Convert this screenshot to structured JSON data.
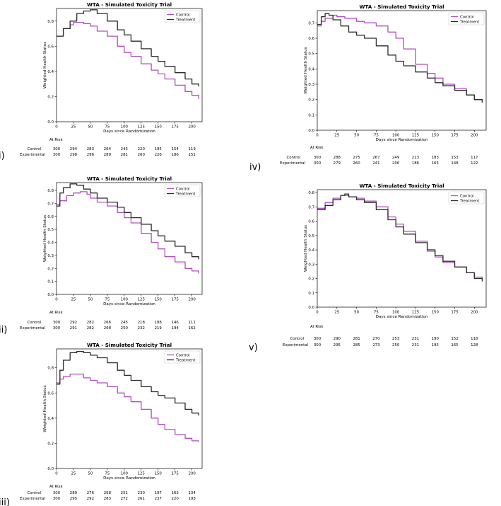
{
  "colors": {
    "control": "#b04fc0",
    "treatment": "#2b2b2b",
    "axis": "#000000"
  },
  "risk_table": {
    "at_risk_label": "At Risk",
    "control_label": "Control",
    "experimental_label": "Experimental"
  },
  "chart_data": [
    {
      "id": "i",
      "panel_label": "i)",
      "type": "line",
      "title": "WTA - Simulated Toxicity Trial",
      "xlabel": "Days since Randomization",
      "ylabel": "Weighted Health Status",
      "xlim": [
        0,
        215
      ],
      "ylim": [
        0,
        0.9
      ],
      "xticks": [
        0,
        25,
        50,
        75,
        100,
        125,
        150,
        175,
        200
      ],
      "yticks": [
        0.0,
        0.2,
        0.4,
        0.6,
        0.8
      ],
      "legend": "top-right",
      "series": [
        {
          "name": "Control",
          "x": [
            0,
            10,
            20,
            25,
            30,
            40,
            50,
            60,
            75,
            90,
            100,
            110,
            125,
            140,
            150,
            160,
            175,
            190,
            200,
            210
          ],
          "y": [
            0.68,
            0.74,
            0.77,
            0.79,
            0.79,
            0.78,
            0.76,
            0.72,
            0.68,
            0.6,
            0.55,
            0.52,
            0.46,
            0.41,
            0.38,
            0.34,
            0.29,
            0.24,
            0.21,
            0.18
          ]
        },
        {
          "name": "Treatment",
          "x": [
            0,
            10,
            20,
            30,
            40,
            50,
            60,
            75,
            90,
            100,
            110,
            125,
            140,
            150,
            160,
            175,
            190,
            200,
            210
          ],
          "y": [
            0.68,
            0.74,
            0.8,
            0.86,
            0.88,
            0.89,
            0.86,
            0.8,
            0.73,
            0.69,
            0.64,
            0.58,
            0.52,
            0.48,
            0.44,
            0.39,
            0.34,
            0.3,
            0.28
          ]
        }
      ],
      "at_risk": {
        "control": [
          300,
          294,
          283,
          264,
          245,
          220,
          195,
          154,
          119
        ],
        "experimental": [
          300,
          298,
          296,
          289,
          281,
          260,
          226,
          186,
          151
        ]
      }
    },
    {
      "id": "ii",
      "panel_label": "ii)",
      "type": "line",
      "title": "WTA - Simulated Toxicity Trial",
      "xlabel": "Days since Randomization",
      "ylabel": "Weighted Health Status",
      "xlim": [
        0,
        215
      ],
      "ylim": [
        0,
        0.86
      ],
      "xticks": [
        0,
        25,
        50,
        75,
        100,
        125,
        150,
        175,
        200
      ],
      "yticks": [
        0.0,
        0.1,
        0.2,
        0.3,
        0.4,
        0.5,
        0.6,
        0.7,
        0.8
      ],
      "legend": "top-right",
      "series": [
        {
          "name": "Control",
          "x": [
            0,
            5,
            15,
            25,
            35,
            45,
            50,
            60,
            75,
            90,
            100,
            110,
            125,
            140,
            150,
            160,
            175,
            190,
            200,
            210
          ],
          "y": [
            0.69,
            0.72,
            0.76,
            0.78,
            0.79,
            0.77,
            0.74,
            0.71,
            0.68,
            0.63,
            0.59,
            0.55,
            0.47,
            0.4,
            0.35,
            0.29,
            0.25,
            0.2,
            0.18,
            0.16
          ]
        },
        {
          "name": "Treatment",
          "x": [
            0,
            5,
            10,
            20,
            30,
            40,
            50,
            60,
            75,
            90,
            100,
            110,
            125,
            140,
            150,
            160,
            175,
            190,
            200,
            210
          ],
          "y": [
            0.68,
            0.78,
            0.82,
            0.85,
            0.84,
            0.81,
            0.78,
            0.74,
            0.71,
            0.67,
            0.63,
            0.59,
            0.54,
            0.49,
            0.45,
            0.41,
            0.37,
            0.32,
            0.29,
            0.27
          ]
        }
      ],
      "at_risk": {
        "control": [
          300,
          292,
          282,
          266,
          245,
          218,
          188,
          146,
          111
        ],
        "experimental": [
          300,
          291,
          282,
          268,
          250,
          232,
          219,
          194,
          162
        ]
      }
    },
    {
      "id": "iii",
      "panel_label": "iii)",
      "type": "line",
      "title": "WTA - Simulated Toxicity Trial",
      "xlabel": "Days since Randomization",
      "ylabel": "Weighted Health Status",
      "xlim": [
        0,
        215
      ],
      "ylim": [
        0,
        0.95
      ],
      "xticks": [
        0,
        25,
        50,
        75,
        100,
        125,
        150,
        175,
        200
      ],
      "yticks": [
        0.0,
        0.2,
        0.4,
        0.6,
        0.8
      ],
      "legend": "top-right",
      "series": [
        {
          "name": "Control",
          "x": [
            0,
            5,
            10,
            20,
            30,
            40,
            50,
            60,
            75,
            90,
            100,
            110,
            125,
            140,
            150,
            160,
            175,
            190,
            200,
            210
          ],
          "y": [
            0.68,
            0.71,
            0.73,
            0.75,
            0.75,
            0.72,
            0.7,
            0.68,
            0.65,
            0.6,
            0.57,
            0.53,
            0.47,
            0.4,
            0.35,
            0.31,
            0.27,
            0.24,
            0.22,
            0.21
          ]
        },
        {
          "name": "Treatment",
          "x": [
            0,
            5,
            10,
            20,
            30,
            40,
            50,
            60,
            75,
            90,
            100,
            110,
            125,
            140,
            150,
            160,
            175,
            190,
            200,
            210
          ],
          "y": [
            0.67,
            0.78,
            0.86,
            0.92,
            0.93,
            0.92,
            0.9,
            0.88,
            0.84,
            0.78,
            0.74,
            0.7,
            0.65,
            0.61,
            0.58,
            0.56,
            0.52,
            0.47,
            0.44,
            0.42
          ]
        }
      ],
      "at_risk": {
        "control": [
          300,
          289,
          276,
          268,
          251,
          230,
          197,
          163,
          134
        ],
        "experimental": [
          300,
          295,
          292,
          283,
          272,
          261,
          237,
          220,
          193
        ]
      }
    },
    {
      "id": "iv",
      "panel_label": "iv)",
      "type": "line",
      "title": "WTA - Simulated Toxicity Trial",
      "xlabel": "Days since Randomization",
      "ylabel": "Weighted Health Status",
      "xlim": [
        0,
        215
      ],
      "ylim": [
        0,
        0.78
      ],
      "xticks": [
        0,
        25,
        50,
        75,
        100,
        125,
        150,
        175,
        200
      ],
      "yticks": [
        0.0,
        0.1,
        0.2,
        0.3,
        0.4,
        0.5,
        0.6,
        0.7
      ],
      "legend": "top-right",
      "series": [
        {
          "name": "Control",
          "x": [
            0,
            5,
            10,
            20,
            25,
            35,
            50,
            60,
            75,
            90,
            100,
            110,
            125,
            140,
            150,
            160,
            175,
            190,
            200,
            210
          ],
          "y": [
            0.68,
            0.71,
            0.73,
            0.75,
            0.74,
            0.73,
            0.71,
            0.7,
            0.68,
            0.64,
            0.6,
            0.53,
            0.43,
            0.37,
            0.34,
            0.3,
            0.27,
            0.23,
            0.2,
            0.18
          ]
        },
        {
          "name": "Treatment",
          "x": [
            0,
            5,
            10,
            15,
            20,
            30,
            40,
            50,
            60,
            75,
            90,
            100,
            110,
            125,
            140,
            150,
            160,
            175,
            190,
            200,
            210
          ],
          "y": [
            0.69,
            0.74,
            0.76,
            0.75,
            0.72,
            0.68,
            0.64,
            0.62,
            0.6,
            0.55,
            0.49,
            0.45,
            0.42,
            0.38,
            0.34,
            0.31,
            0.29,
            0.26,
            0.23,
            0.2,
            0.18
          ]
        }
      ],
      "at_risk": {
        "control": [
          300,
          288,
          275,
          267,
          249,
          213,
          183,
          153,
          117
        ],
        "experimental": [
          300,
          279,
          260,
          241,
          206,
          186,
          165,
          148,
          122
        ]
      }
    },
    {
      "id": "v",
      "panel_label": "v)",
      "type": "line",
      "title": "WTA - Simulated Toxicity Trial",
      "xlabel": "Days since Randomization",
      "ylabel": "Weighted Health Status",
      "xlim": [
        0,
        215
      ],
      "ylim": [
        0,
        0.82
      ],
      "xticks": [
        0,
        25,
        50,
        75,
        100,
        125,
        150,
        175,
        200
      ],
      "yticks": [
        0.0,
        0.1,
        0.2,
        0.3,
        0.4,
        0.5,
        0.6,
        0.7,
        0.8
      ],
      "legend": "top-right",
      "series": [
        {
          "name": "Control",
          "x": [
            0,
            10,
            20,
            30,
            40,
            50,
            60,
            75,
            90,
            100,
            110,
            125,
            140,
            150,
            160,
            175,
            190,
            200,
            210
          ],
          "y": [
            0.69,
            0.73,
            0.76,
            0.78,
            0.77,
            0.76,
            0.74,
            0.7,
            0.63,
            0.58,
            0.53,
            0.46,
            0.39,
            0.35,
            0.31,
            0.28,
            0.24,
            0.21,
            0.19
          ]
        },
        {
          "name": "Treatment",
          "x": [
            0,
            10,
            20,
            30,
            35,
            40,
            50,
            60,
            75,
            90,
            100,
            110,
            125,
            140,
            150,
            160,
            175,
            190,
            200,
            210
          ],
          "y": [
            0.68,
            0.71,
            0.75,
            0.78,
            0.79,
            0.77,
            0.75,
            0.73,
            0.68,
            0.61,
            0.56,
            0.51,
            0.45,
            0.4,
            0.36,
            0.32,
            0.28,
            0.24,
            0.2,
            0.18
          ]
        }
      ],
      "at_risk": {
        "control": [
          300,
          290,
          281,
          270,
          253,
          231,
          190,
          152,
          118
        ],
        "experimental": [
          300,
          295,
          285,
          273,
          250,
          231,
          195,
          165,
          128
        ]
      }
    }
  ]
}
